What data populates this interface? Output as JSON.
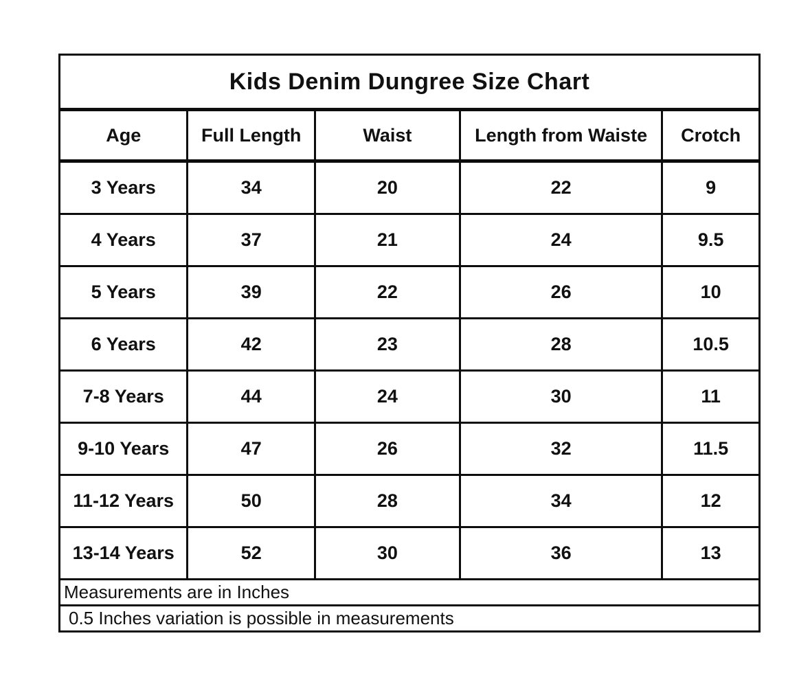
{
  "chart_data": {
    "type": "table",
    "title": "Kids Denim Dungree Size Chart",
    "columns": [
      "Age",
      "Full Length",
      "Waist",
      "Length from Waiste",
      "Crotch"
    ],
    "rows": [
      [
        "3 Years",
        "34",
        "20",
        "22",
        "9"
      ],
      [
        "4 Years",
        "37",
        "21",
        "24",
        "9.5"
      ],
      [
        "5 Years",
        "39",
        "22",
        "26",
        "10"
      ],
      [
        "6 Years",
        "42",
        "23",
        "28",
        "10.5"
      ],
      [
        "7-8 Years",
        "44",
        "24",
        "30",
        "11"
      ],
      [
        "9-10 Years",
        "47",
        "26",
        "32",
        "11.5"
      ],
      [
        "11-12 Years",
        "50",
        "28",
        "34",
        "12"
      ],
      [
        "13-14 Years",
        "52",
        "30",
        "36",
        "13"
      ]
    ],
    "notes": [
      "Measurements are in Inches",
      "0.5 Inches variation is possible in measurements"
    ],
    "units": "Inches",
    "colors": {
      "background": "#ffffff",
      "border": "#0d0d0d",
      "text": "#111111"
    }
  }
}
